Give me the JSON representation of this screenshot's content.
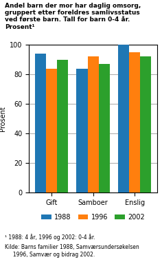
{
  "chart_data": {
    "type": "bar",
    "title": "Andel barn der mor har daglig omsorg,\ngruppert etter foreldres samlivsstatus\nved første barn. Tall for barn 0-4 år.\nProsent¹",
    "ylabel": "Prosent",
    "categories": [
      "Gift",
      "Samboer",
      "Enslig"
    ],
    "series": [
      {
        "name": "1988",
        "values": [
          94,
          84,
          100
        ]
      },
      {
        "name": "1996",
        "values": [
          84,
          92,
          95
        ]
      },
      {
        "name": "2002",
        "values": [
          90,
          87,
          92
        ]
      }
    ],
    "ylim": [
      0,
      100
    ],
    "yticks": [
      0,
      20,
      40,
      60,
      80,
      100
    ],
    "grid": true,
    "legend": "upper center",
    "annotations": [
      "¹ 1988: 4 år, 1996 og 2002: 0-4 år.",
      "Kilde: Barns familier 1988, Samværsundersøkelsen\n     1996, Samvær og bidrag 2002."
    ]
  }
}
